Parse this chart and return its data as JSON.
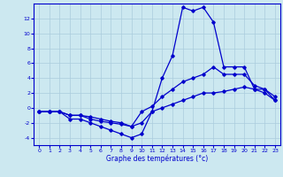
{
  "xlabel": "Graphe des températures (°c)",
  "bg_color": "#cce8f0",
  "grid_color": "#aaccdd",
  "line_color": "#0000cc",
  "xlim": [
    -0.5,
    23.5
  ],
  "ylim": [
    -5,
    14
  ],
  "xticks": [
    0,
    1,
    2,
    3,
    4,
    5,
    6,
    7,
    8,
    9,
    10,
    11,
    12,
    13,
    14,
    15,
    16,
    17,
    18,
    19,
    20,
    21,
    22,
    23
  ],
  "yticks": [
    -4,
    -2,
    0,
    2,
    4,
    6,
    8,
    10,
    12
  ],
  "hours": [
    0,
    1,
    2,
    3,
    4,
    5,
    6,
    7,
    8,
    9,
    10,
    11,
    12,
    13,
    14,
    15,
    16,
    17,
    18,
    19,
    20,
    21,
    22,
    23
  ],
  "top_line": [
    -0.5,
    -0.5,
    -0.5,
    -1.5,
    -1.5,
    -2.0,
    -2.5,
    -3.0,
    -3.5,
    -4.0,
    -3.5,
    -0.5,
    4.0,
    7.0,
    13.5,
    13.0,
    13.5,
    11.5,
    5.5,
    5.5,
    5.5,
    2.5,
    2.5,
    1.0
  ],
  "mid_line": [
    -0.5,
    -0.5,
    -0.5,
    -1.0,
    -1.0,
    -1.5,
    -1.8,
    -2.0,
    -2.2,
    -2.5,
    -0.5,
    0.2,
    1.5,
    2.5,
    3.5,
    4.0,
    4.5,
    5.5,
    4.5,
    4.5,
    4.5,
    3.0,
    2.5,
    1.5
  ],
  "bot_line": [
    -0.5,
    -0.5,
    -0.5,
    -1.0,
    -1.0,
    -1.2,
    -1.5,
    -1.8,
    -2.0,
    -2.5,
    -2.0,
    -0.5,
    0.0,
    0.5,
    1.0,
    1.5,
    2.0,
    2.0,
    2.2,
    2.5,
    2.8,
    2.5,
    2.0,
    1.0
  ]
}
